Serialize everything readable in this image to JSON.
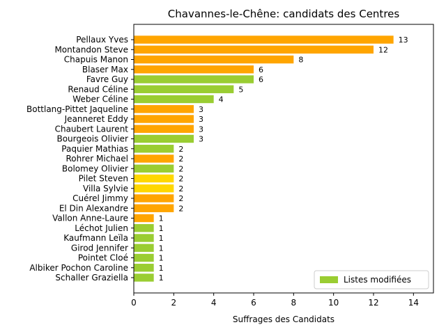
{
  "chart_data": {
    "type": "bar",
    "orientation": "horizontal",
    "title": "Chavannes-le-Chêne: candidats des Centres",
    "xlabel": "Suffrages des Candidats",
    "ylabel": "",
    "xlim": [
      0,
      15
    ],
    "xticks": [
      0,
      2,
      4,
      6,
      8,
      10,
      12,
      14
    ],
    "grid": false,
    "legend": {
      "position": "lower-right",
      "entries": [
        {
          "label": "Listes modifiées",
          "color": "#9acd32"
        }
      ]
    },
    "categories": [
      "Pellaux Yves",
      "Montandon Steve",
      "Chapuis Manon",
      "Blaser Max",
      "Favre Guy",
      "Renaud Céline",
      "Weber Céline",
      "Bottlang-Pittet Jaqueline",
      "Jeanneret Eddy",
      "Chaubert Laurent",
      "Bourgeois Olivier",
      "Paquier Mathias",
      "Rohrer Michael",
      "Bolomey Olivier",
      "Pilet Steven",
      "Villa Sylvie",
      "Cuérel Jimmy",
      "El Din Alexandre",
      "Vallon Anne-Laure",
      "Léchot Julien",
      "Kaufmann Leïla",
      "Girod Jennifer",
      "Pointet Cloé",
      "Albiker Pochon Caroline",
      "Schaller Graziella"
    ],
    "values": [
      13,
      12,
      8,
      6,
      6,
      5,
      4,
      3,
      3,
      3,
      3,
      2,
      2,
      2,
      2,
      2,
      2,
      2,
      1,
      1,
      1,
      1,
      1,
      1,
      1
    ],
    "value_labels": [
      "13",
      "12",
      "8",
      "6",
      "6",
      "5",
      "4",
      "3",
      "3",
      "3",
      "3",
      "2",
      "2",
      "2",
      "2",
      "2",
      "2",
      "2",
      "1",
      "1",
      "1",
      "1",
      "1",
      "1",
      "1"
    ],
    "colors": [
      "#ffa500",
      "#ffa500",
      "#ffa500",
      "#ffa500",
      "#9acd32",
      "#9acd32",
      "#9acd32",
      "#ffa500",
      "#ffa500",
      "#ffa500",
      "#9acd32",
      "#9acd32",
      "#ffa500",
      "#9acd32",
      "#ffd700",
      "#ffd700",
      "#ffa500",
      "#ffa500",
      "#ffa500",
      "#9acd32",
      "#9acd32",
      "#9acd32",
      "#9acd32",
      "#9acd32",
      "#9acd32"
    ]
  }
}
